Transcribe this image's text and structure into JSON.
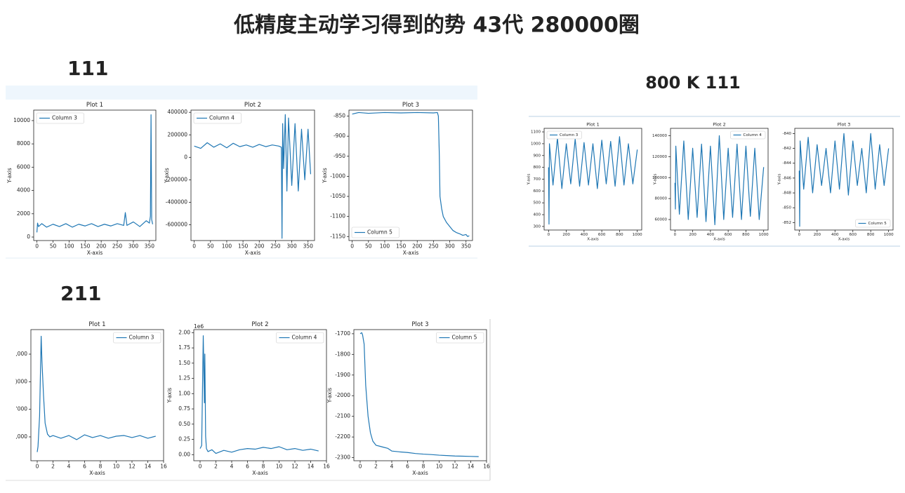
{
  "title": "低精度主动学习得到的势 43代 280000圈",
  "groups": [
    {
      "label": "111"
    },
    {
      "label": "800 K 111"
    },
    {
      "label": "211"
    }
  ],
  "chart_data": [
    {
      "type": "line",
      "title": "Plot 1",
      "x_label": "X-axis",
      "y_label": "Y-axis",
      "legend": "upper left",
      "x": [
        0,
        2,
        5,
        15,
        30,
        50,
        70,
        90,
        110,
        130,
        150,
        170,
        190,
        210,
        230,
        250,
        270,
        275,
        280,
        300,
        320,
        340,
        350,
        353,
        355,
        357,
        360
      ],
      "series": [
        {
          "name": "Column 3",
          "color": "#1f77b4",
          "values": [
            400,
            1200,
            900,
            1150,
            850,
            1100,
            900,
            1150,
            850,
            1100,
            950,
            1150,
            900,
            1100,
            950,
            1150,
            1000,
            2100,
            1000,
            1300,
            900,
            1400,
            1200,
            1800,
            10500,
            1500,
            1100
          ]
        }
      ],
      "xlim": [
        -10,
        370
      ],
      "xticks": [
        0,
        50,
        100,
        150,
        200,
        250,
        300,
        350
      ],
      "ylim": [
        -300,
        10900
      ],
      "yticks": [
        0,
        2000,
        4000,
        6000,
        8000,
        10000
      ]
    },
    {
      "type": "line",
      "title": "Plot 2",
      "x_label": "X-axis",
      "y_label": "Y-axis",
      "legend": "upper left",
      "x": [
        0,
        20,
        40,
        60,
        80,
        100,
        120,
        140,
        160,
        180,
        200,
        220,
        240,
        260,
        268,
        270,
        272,
        275,
        280,
        285,
        290,
        300,
        310,
        320,
        330,
        340,
        350,
        358
      ],
      "series": [
        {
          "name": "Column 4",
          "color": "#1f77b4",
          "values": [
            100000,
            80000,
            130000,
            90000,
            120000,
            85000,
            125000,
            95000,
            110000,
            90000,
            115000,
            95000,
            110000,
            100000,
            90000,
            -720000,
            300000,
            -100000,
            380000,
            -300000,
            350000,
            -250000,
            300000,
            -300000,
            250000,
            -200000,
            250000,
            -150000
          ]
        }
      ],
      "xlim": [
        -10,
        370
      ],
      "xticks": [
        0,
        50,
        100,
        150,
        200,
        250,
        300,
        350
      ],
      "ylim": [
        -740000,
        420000
      ],
      "yticks": [
        -600000,
        -400000,
        -200000,
        0,
        200000,
        400000
      ]
    },
    {
      "type": "line",
      "title": "Plot 3",
      "x_label": "X-axis",
      "y_label": "Y-axis",
      "legend": "lower left",
      "x": [
        0,
        20,
        50,
        100,
        150,
        200,
        250,
        262,
        265,
        268,
        270,
        275,
        280,
        290,
        300,
        310,
        320,
        330,
        340,
        350,
        355,
        360
      ],
      "series": [
        {
          "name": "Column 5",
          "color": "#1f77b4",
          "values": [
            -845,
            -841,
            -843,
            -841,
            -842,
            -841,
            -842,
            -841,
            -850,
            -950,
            -1050,
            -1080,
            -1100,
            -1115,
            -1125,
            -1135,
            -1140,
            -1143,
            -1147,
            -1145,
            -1150,
            -1148
          ]
        }
      ],
      "xlim": [
        -10,
        370
      ],
      "xticks": [
        0,
        50,
        100,
        150,
        200,
        250,
        300,
        350
      ],
      "ylim": [
        -1160,
        -835
      ],
      "yticks": [
        -1150,
        -1100,
        -1050,
        -1000,
        -950,
        -900,
        -850
      ]
    },
    {
      "type": "line",
      "title": "Plot 1",
      "x_label": "X-axis",
      "y_label": "Y-axis",
      "legend": "upper left",
      "x": [
        0,
        5,
        10,
        50,
        100,
        150,
        200,
        250,
        300,
        350,
        400,
        450,
        500,
        550,
        600,
        650,
        700,
        750,
        800,
        850,
        900,
        950,
        1000
      ],
      "series": [
        {
          "name": "Column 3",
          "color": "#1f77b4",
          "values": [
            800,
            320,
            1000,
            650,
            1050,
            620,
            1000,
            660,
            1040,
            640,
            1010,
            650,
            1000,
            620,
            1030,
            660,
            1020,
            640,
            1060,
            650,
            1000,
            660,
            950
          ]
        }
      ],
      "xlim": [
        -50,
        1050
      ],
      "xticks": [
        0,
        200,
        400,
        600,
        800,
        1000
      ],
      "ylim": [
        270,
        1130
      ],
      "yticks": [
        300,
        400,
        500,
        600,
        700,
        800,
        900,
        1000,
        1100
      ]
    },
    {
      "type": "line",
      "title": "Plot 2",
      "x_label": "X-axis",
      "y_label": "Y-axis",
      "legend": "upper right",
      "x": [
        0,
        5,
        10,
        50,
        100,
        150,
        200,
        250,
        300,
        350,
        400,
        450,
        500,
        550,
        600,
        650,
        700,
        750,
        800,
        850,
        900,
        950,
        1000
      ],
      "series": [
        {
          "name": "Column 4",
          "color": "#1f77b4",
          "values": [
            95000,
            70000,
            130000,
            65000,
            135000,
            60000,
            128000,
            62000,
            132000,
            58000,
            130000,
            55000,
            140000,
            60000,
            128000,
            62000,
            132000,
            60000,
            130000,
            63000,
            128000,
            60000,
            110000
          ]
        }
      ],
      "xlim": [
        -50,
        1050
      ],
      "xticks": [
        0,
        200,
        400,
        600,
        800,
        1000
      ],
      "ylim": [
        50000,
        147000
      ],
      "yticks": [
        60000,
        80000,
        100000,
        120000,
        140000
      ]
    },
    {
      "type": "line",
      "title": "Plot 3",
      "x_label": "X-axis",
      "y_label": "Y-axis",
      "legend": "lower right",
      "x": [
        0,
        5,
        10,
        50,
        100,
        150,
        200,
        250,
        300,
        350,
        400,
        450,
        500,
        550,
        600,
        650,
        700,
        750,
        800,
        850,
        900,
        950,
        1000
      ],
      "series": [
        {
          "name": "Column 5",
          "color": "#1f77b4",
          "values": [
            -845,
            -852.5,
            -841,
            -847.5,
            -840.5,
            -848,
            -841.5,
            -847,
            -842,
            -848,
            -841,
            -847.5,
            -840,
            -848.3,
            -841,
            -847,
            -842,
            -848,
            -840,
            -847.5,
            -841.5,
            -847,
            -842
          ]
        }
      ],
      "xlim": [
        -50,
        1050
      ],
      "xticks": [
        0,
        200,
        400,
        600,
        800,
        1000
      ],
      "ylim": [
        -853,
        -839.3
      ],
      "yticks": [
        -852,
        -850,
        -848,
        -846,
        -844,
        -842,
        -840
      ]
    },
    {
      "type": "line",
      "title": "Plot 1",
      "x_label": "X-axis",
      "legend": "upper right",
      "x": [
        0,
        0.1,
        0.3,
        0.5,
        0.6,
        0.8,
        1,
        1.3,
        1.6,
        2,
        3,
        4,
        5,
        6,
        7,
        8,
        9,
        10,
        11,
        12,
        13,
        14,
        15
      ],
      "series": [
        {
          "name": "Column 3",
          "color": "#1f77b4",
          "values": [
            900,
            1300,
            3500,
            9300,
            7500,
            5000,
            3000,
            2200,
            2000,
            2100,
            1900,
            2100,
            1800,
            2150,
            1950,
            2100,
            1900,
            2050,
            2100,
            1950,
            2100,
            1900,
            2050
          ]
        }
      ],
      "xlim": [
        -0.8,
        16
      ],
      "xticks": [
        0,
        2,
        4,
        6,
        8,
        10,
        12,
        14,
        16
      ],
      "ylim": [
        270,
        9780
      ],
      "yticks": [
        {
          "value": 2000,
          "label": ",000"
        },
        {
          "value": 4000,
          "label": "'000"
        },
        {
          "value": 6000,
          "label": ")000"
        },
        {
          "value": 8000,
          "label": ",000"
        }
      ]
    },
    {
      "type": "line",
      "title": "Plot 2",
      "x_label": "X-axis",
      "y_label": "Y-axis",
      "y_offset_label": "1e6",
      "legend": "upper right",
      "x": [
        0,
        0.2,
        0.4,
        0.5,
        0.55,
        0.6,
        0.7,
        0.8,
        1,
        1.5,
        2,
        3,
        4,
        5,
        6,
        7,
        8,
        9,
        10,
        11,
        12,
        13,
        14,
        15
      ],
      "series": [
        {
          "name": "Column 4",
          "color": "#1f77b4",
          "values": [
            0.1,
            0.15,
            1.95,
            1.2,
            0.85,
            1.65,
            0.3,
            0.1,
            0.05,
            0.08,
            0.02,
            0.07,
            0.04,
            0.08,
            0.1,
            0.09,
            0.12,
            0.1,
            0.13,
            0.08,
            0.1,
            0.07,
            0.09,
            0.06
          ]
        }
      ],
      "xlim": [
        -0.8,
        16
      ],
      "xticks": [
        0,
        2,
        4,
        6,
        8,
        10,
        12,
        14,
        16
      ],
      "ylim": [
        -0.1,
        2.05
      ],
      "yticks": [
        {
          "value": 0,
          "label": "0.00"
        },
        {
          "value": 0.25,
          "label": "0.25"
        },
        {
          "value": 0.5,
          "label": "0.50"
        },
        {
          "value": 0.75,
          "label": "0.75"
        },
        {
          "value": 1,
          "label": "1.00"
        },
        {
          "value": 1.25,
          "label": "1.25"
        },
        {
          "value": 1.5,
          "label": "1.50"
        },
        {
          "value": 1.75,
          "label": "1.75"
        },
        {
          "value": 2,
          "label": "2.00"
        }
      ]
    },
    {
      "type": "line",
      "title": "Plot 3",
      "x_label": "X-axis",
      "y_label": "Y-axis",
      "legend": "upper right",
      "x": [
        0,
        0.2,
        0.3,
        0.5,
        0.7,
        1,
        1.3,
        1.6,
        2,
        2.5,
        3,
        3.5,
        4,
        5,
        6,
        7,
        8,
        9,
        10,
        11,
        12,
        13,
        14,
        15
      ],
      "series": [
        {
          "name": "Column 5",
          "color": "#1f77b4",
          "values": [
            -1700,
            -1695,
            -1705,
            -1750,
            -1950,
            -2100,
            -2180,
            -2220,
            -2240,
            -2245,
            -2250,
            -2255,
            -2268,
            -2272,
            -2275,
            -2280,
            -2283,
            -2285,
            -2288,
            -2290,
            -2292,
            -2293,
            -2294,
            -2295
          ]
        }
      ],
      "xlim": [
        -0.8,
        16
      ],
      "xticks": [
        0,
        2,
        4,
        6,
        8,
        10,
        12,
        14,
        16
      ],
      "ylim": [
        -2315,
        -1680
      ],
      "yticks": [
        -2300,
        -2200,
        -2100,
        -2000,
        -1900,
        -1800,
        -1700
      ]
    }
  ]
}
